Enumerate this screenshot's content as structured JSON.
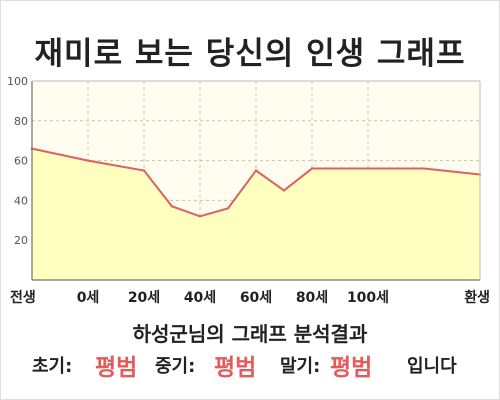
{
  "title": "재미로 보는 당신의 인생 그래프",
  "subtitle": "하성군님의 그래프 분석결과",
  "result": {
    "early_label": "초기:",
    "early_value": "평범",
    "mid_label": "중기:",
    "mid_value": "평범",
    "late_label": "말기:",
    "late_value": "평범",
    "suffix": "입니다"
  },
  "colors": {
    "line": "#e06060",
    "fill": "#ffffc0",
    "plot_bg": "#fffdf0",
    "grid": "#c8c8a0"
  },
  "chart_data": {
    "type": "area",
    "title": "재미로 보는 당신의 인생 그래프",
    "xlabel": "",
    "ylabel": "",
    "ylim": [
      0,
      100
    ],
    "yticks": [
      20,
      40,
      60,
      80,
      100
    ],
    "xticks": [
      "전생",
      "0세",
      "20세",
      "40세",
      "60세",
      "80세",
      "100세",
      "환생"
    ],
    "x": [
      -1,
      0,
      1,
      1.5,
      2,
      2.5,
      3,
      3.5,
      4,
      5,
      6,
      7
    ],
    "values": [
      66,
      60,
      55,
      37,
      32,
      36,
      55,
      45,
      56,
      56,
      56,
      53
    ],
    "grid": true,
    "legend": "none"
  }
}
